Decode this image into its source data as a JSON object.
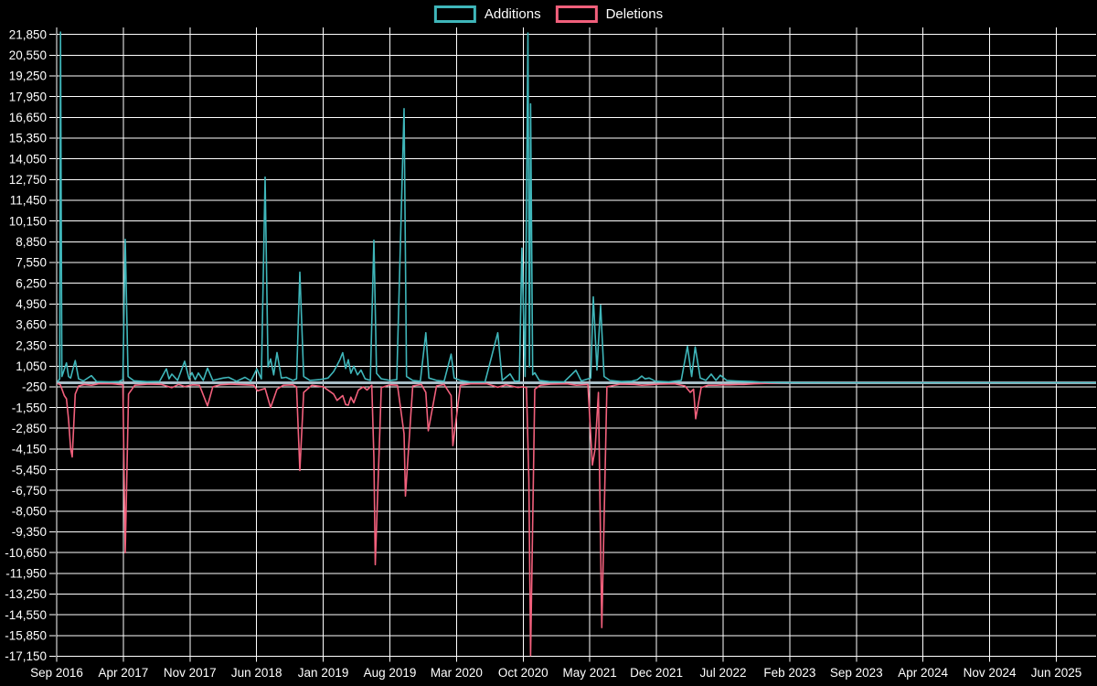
{
  "legend": {
    "items": [
      {
        "label": "Additions",
        "color": "#3fb6ba"
      },
      {
        "label": "Deletions",
        "color": "#f2607c"
      }
    ]
  },
  "chart_data": {
    "type": "line",
    "title": "",
    "xlabel": "",
    "ylabel": "",
    "background_color": "#000000",
    "grid": true,
    "grid_color": "#ffffff",
    "zero_line_color": "#a9bec8",
    "text_color": "#ffffff",
    "legend_position": "top-center",
    "y_min": -17150,
    "y_max": 21850,
    "y_step": 1300,
    "y_tick_labels": [
      "21,850",
      "20,550",
      "19,250",
      "17,950",
      "16,650",
      "15,350",
      "14,050",
      "12,750",
      "11,450",
      "10,150",
      "8,850",
      "7,550",
      "6,250",
      "4,950",
      "3,650",
      "2,350",
      "1,050",
      "-250",
      "-1,550",
      "-2,850",
      "-4,150",
      "-5,450",
      "-6,750",
      "-8,050",
      "-9,350",
      "-10,650",
      "-11,950",
      "-13,250",
      "-14,550",
      "-15,850",
      "-17,150"
    ],
    "x_tick_labels": [
      "Sep 2016",
      "Apr 2017",
      "Nov 2017",
      "Jun 2018",
      "Jan 2019",
      "Aug 2019",
      "Mar 2020",
      "Oct 2020",
      "May 2021",
      "Dec 2021",
      "Jul 2022",
      "Feb 2023",
      "Sep 2023",
      "Apr 2024",
      "Nov 2024",
      "Jun 2025"
    ],
    "x_months_per_gridline": 7,
    "x_unit": "months since Sep 2016",
    "x_total_months": 109.2,
    "series": [
      {
        "name": "Additions",
        "color": "#3fb6ba",
        "points": [
          [
            0.1,
            60
          ],
          [
            0.32,
            250
          ],
          [
            0.4,
            22000
          ],
          [
            0.55,
            400
          ],
          [
            1.03,
            1250
          ],
          [
            1.25,
            400
          ],
          [
            1.47,
            300
          ],
          [
            1.63,
            700
          ],
          [
            1.95,
            1400
          ],
          [
            2.3,
            250
          ],
          [
            2.8,
            120
          ],
          [
            3.65,
            450
          ],
          [
            4.2,
            80
          ],
          [
            5.5,
            60
          ],
          [
            6.5,
            70
          ],
          [
            6.95,
            200
          ],
          [
            7.2,
            9000
          ],
          [
            7.5,
            400
          ],
          [
            8.1,
            130
          ],
          [
            9.5,
            70
          ],
          [
            10.8,
            90
          ],
          [
            11.52,
            880
          ],
          [
            11.8,
            250
          ],
          [
            12.1,
            550
          ],
          [
            12.7,
            150
          ],
          [
            13.44,
            1360
          ],
          [
            13.9,
            250
          ],
          [
            14.21,
            640
          ],
          [
            14.55,
            200
          ],
          [
            14.88,
            620
          ],
          [
            15.4,
            150
          ],
          [
            15.84,
            930
          ],
          [
            16.4,
            150
          ],
          [
            17.47,
            300
          ],
          [
            18.05,
            350
          ],
          [
            18.9,
            100
          ],
          [
            19.78,
            350
          ],
          [
            20.4,
            120
          ],
          [
            21.03,
            870
          ],
          [
            21.5,
            250
          ],
          [
            21.89,
            12900
          ],
          [
            22.2,
            1000
          ],
          [
            22.47,
            1500
          ],
          [
            22.8,
            500
          ],
          [
            23.14,
            1900
          ],
          [
            23.6,
            300
          ],
          [
            24.1,
            350
          ],
          [
            24.8,
            150
          ],
          [
            25.2,
            250
          ],
          [
            25.54,
            6940
          ],
          [
            25.95,
            400
          ],
          [
            26.6,
            150
          ],
          [
            27.6,
            200
          ],
          [
            28.5,
            300
          ],
          [
            29.09,
            700
          ],
          [
            29.45,
            1100
          ],
          [
            29.75,
            1450
          ],
          [
            30.05,
            1890
          ],
          [
            30.35,
            900
          ],
          [
            30.63,
            1450
          ],
          [
            30.9,
            600
          ],
          [
            31.21,
            1050
          ],
          [
            31.6,
            500
          ],
          [
            31.97,
            800
          ],
          [
            32.4,
            250
          ],
          [
            32.95,
            150
          ],
          [
            33.32,
            8950
          ],
          [
            33.6,
            600
          ],
          [
            34.1,
            250
          ],
          [
            35.0,
            150
          ],
          [
            35.72,
            200
          ],
          [
            36.49,
            17200
          ],
          [
            36.75,
            400
          ],
          [
            37.4,
            150
          ],
          [
            38.2,
            100
          ],
          [
            38.77,
            3140
          ],
          [
            39.1,
            300
          ],
          [
            39.9,
            150
          ],
          [
            40.7,
            100
          ],
          [
            41.43,
            1800
          ],
          [
            41.75,
            300
          ],
          [
            42.4,
            150
          ],
          [
            43.4,
            60
          ],
          [
            45.0,
            60
          ],
          [
            46.33,
            3140
          ],
          [
            46.8,
            150
          ],
          [
            47.63,
            560
          ],
          [
            48.1,
            100
          ],
          [
            48.6,
            120
          ],
          [
            48.87,
            8450
          ],
          [
            49.2,
            400
          ],
          [
            49.5,
            21950
          ],
          [
            49.66,
            1000
          ],
          [
            49.78,
            17500
          ],
          [
            50.0,
            500
          ],
          [
            50.22,
            630
          ],
          [
            50.7,
            150
          ],
          [
            51.7,
            80
          ],
          [
            53.3,
            60
          ],
          [
            54.54,
            790
          ],
          [
            55.1,
            120
          ],
          [
            56.1,
            300
          ],
          [
            56.37,
            5390
          ],
          [
            56.75,
            800
          ],
          [
            57.13,
            4870
          ],
          [
            57.5,
            400
          ],
          [
            58.1,
            150
          ],
          [
            59.3,
            80
          ],
          [
            60.4,
            100
          ],
          [
            61.0,
            200
          ],
          [
            61.46,
            430
          ],
          [
            61.8,
            250
          ],
          [
            62.23,
            300
          ],
          [
            62.9,
            100
          ],
          [
            64.3,
            60
          ],
          [
            65.6,
            150
          ],
          [
            66.26,
            2290
          ],
          [
            66.7,
            400
          ],
          [
            67.07,
            2250
          ],
          [
            67.6,
            300
          ],
          [
            68.2,
            150
          ],
          [
            68.75,
            550
          ],
          [
            69.25,
            150
          ],
          [
            69.71,
            480
          ],
          [
            70.38,
            150
          ],
          [
            71.34,
            120
          ],
          [
            72.01,
            100
          ],
          [
            73.07,
            80
          ],
          [
            74.3,
            30
          ],
          [
            76.0,
            10
          ],
          [
            80.0,
            5
          ],
          [
            90.0,
            3
          ],
          [
            100.0,
            2
          ],
          [
            109.2,
            2
          ]
        ]
      },
      {
        "name": "Deletions",
        "color": "#f2607c",
        "points": [
          [
            0.1,
            -40
          ],
          [
            0.38,
            -120
          ],
          [
            0.5,
            -300
          ],
          [
            0.8,
            -800
          ],
          [
            1.03,
            -1000
          ],
          [
            1.25,
            -2300
          ],
          [
            1.47,
            -4150
          ],
          [
            1.63,
            -4650
          ],
          [
            1.95,
            -700
          ],
          [
            2.3,
            -200
          ],
          [
            2.9,
            -100
          ],
          [
            3.65,
            -150
          ],
          [
            4.4,
            -60
          ],
          [
            5.8,
            -60
          ],
          [
            6.95,
            -120
          ],
          [
            7.2,
            -10650
          ],
          [
            7.55,
            -700
          ],
          [
            8.2,
            -150
          ],
          [
            9.6,
            -80
          ],
          [
            11.0,
            -100
          ],
          [
            11.52,
            -200
          ],
          [
            12.1,
            -300
          ],
          [
            12.8,
            -100
          ],
          [
            13.44,
            -230
          ],
          [
            14.3,
            -120
          ],
          [
            15.0,
            -150
          ],
          [
            15.84,
            -1450
          ],
          [
            16.4,
            -250
          ],
          [
            17.2,
            -120
          ],
          [
            18.3,
            -80
          ],
          [
            19.8,
            -120
          ],
          [
            20.7,
            -150
          ],
          [
            21.1,
            -500
          ],
          [
            21.89,
            -350
          ],
          [
            22.47,
            -1550
          ],
          [
            23.14,
            -400
          ],
          [
            23.8,
            -150
          ],
          [
            24.8,
            -120
          ],
          [
            25.2,
            -250
          ],
          [
            25.54,
            -5500
          ],
          [
            25.95,
            -600
          ],
          [
            26.8,
            -150
          ],
          [
            28.0,
            -250
          ],
          [
            29.09,
            -700
          ],
          [
            29.45,
            -1100
          ],
          [
            30.05,
            -800
          ],
          [
            30.35,
            -1360
          ],
          [
            30.63,
            -1400
          ],
          [
            30.9,
            -900
          ],
          [
            31.21,
            -1250
          ],
          [
            31.7,
            -450
          ],
          [
            32.2,
            -250
          ],
          [
            32.6,
            -450
          ],
          [
            33.1,
            -150
          ],
          [
            33.32,
            -4700
          ],
          [
            33.46,
            -11400
          ],
          [
            34.1,
            -300
          ],
          [
            35.0,
            -120
          ],
          [
            35.8,
            -150
          ],
          [
            36.49,
            -3200
          ],
          [
            36.63,
            -7100
          ],
          [
            37.4,
            -200
          ],
          [
            38.3,
            -100
          ],
          [
            38.77,
            -600
          ],
          [
            39.03,
            -3000
          ],
          [
            39.9,
            -200
          ],
          [
            40.7,
            -100
          ],
          [
            41.43,
            -800
          ],
          [
            41.62,
            -3940
          ],
          [
            42.4,
            -150
          ],
          [
            43.5,
            -60
          ],
          [
            45.2,
            -60
          ],
          [
            46.33,
            -280
          ],
          [
            47.2,
            -120
          ],
          [
            48.46,
            -290
          ],
          [
            48.87,
            -250
          ],
          [
            49.35,
            -300
          ],
          [
            49.6,
            -6000
          ],
          [
            49.78,
            -17100
          ],
          [
            50.22,
            -400
          ],
          [
            50.8,
            -150
          ],
          [
            51.9,
            -80
          ],
          [
            53.6,
            -60
          ],
          [
            54.6,
            -150
          ],
          [
            55.8,
            -100
          ],
          [
            56.27,
            -5160
          ],
          [
            56.56,
            -4130
          ],
          [
            56.9,
            -600
          ],
          [
            57.26,
            -15350
          ],
          [
            57.8,
            -250
          ],
          [
            59.2,
            -80
          ],
          [
            60.7,
            -100
          ],
          [
            61.46,
            -150
          ],
          [
            62.3,
            -120
          ],
          [
            63.3,
            -80
          ],
          [
            64.9,
            -60
          ],
          [
            66.0,
            -200
          ],
          [
            66.55,
            -600
          ],
          [
            66.9,
            -400
          ],
          [
            67.12,
            -2250
          ],
          [
            67.7,
            -300
          ],
          [
            68.4,
            -150
          ],
          [
            69.3,
            -150
          ],
          [
            70.0,
            -120
          ],
          [
            70.7,
            -120
          ],
          [
            71.6,
            -100
          ],
          [
            72.2,
            -100
          ],
          [
            73.3,
            -60
          ],
          [
            74.8,
            -30
          ],
          [
            77.0,
            -10
          ],
          [
            82.0,
            -5
          ],
          [
            92.0,
            -3
          ],
          [
            102.0,
            -2
          ],
          [
            109.2,
            -2
          ]
        ]
      }
    ]
  }
}
